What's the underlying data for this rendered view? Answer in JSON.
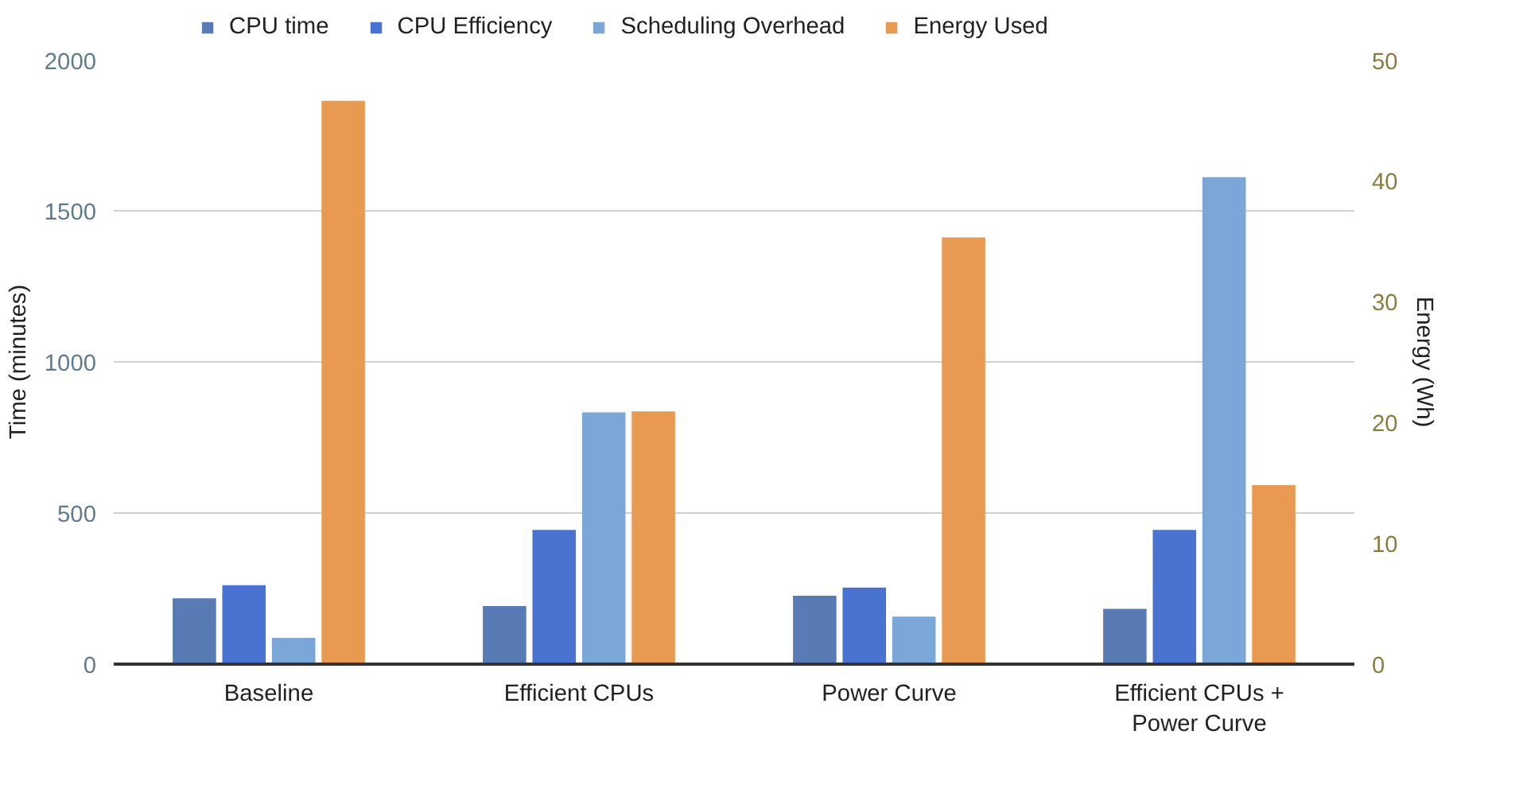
{
  "chart_data": {
    "type": "bar",
    "categories": [
      "Baseline",
      "Efficient CPUs",
      "Power Curve",
      "Efficient CPUs + Power Curve"
    ],
    "ylabel": "Time (minutes)",
    "y2label": "Energy (Wh)",
    "ylim": [
      0,
      2000
    ],
    "yticks": [
      0,
      500,
      1000,
      1500,
      2000
    ],
    "y2lim": [
      0,
      50
    ],
    "y2ticks": [
      0,
      10,
      20,
      30,
      40,
      50
    ],
    "grid": "y",
    "legend": "top",
    "series": [
      {
        "name": "CPU time",
        "color": "#587bb5",
        "values": [
          218,
          192,
          226,
          183
        ]
      },
      {
        "name": "CPU Efficiency",
        "color": "#4a73d1",
        "values": [
          261,
          444,
          253,
          444
        ]
      },
      {
        "name": "Scheduling Overhead",
        "color": "#7ba6d8",
        "values": [
          87,
          833,
          157,
          1611
        ]
      },
      {
        "name": "Energy Used",
        "color": "#e99a52",
        "values": [
          46.6,
          20.9,
          35.3,
          14.8
        ],
        "axis": "y2"
      }
    ]
  }
}
